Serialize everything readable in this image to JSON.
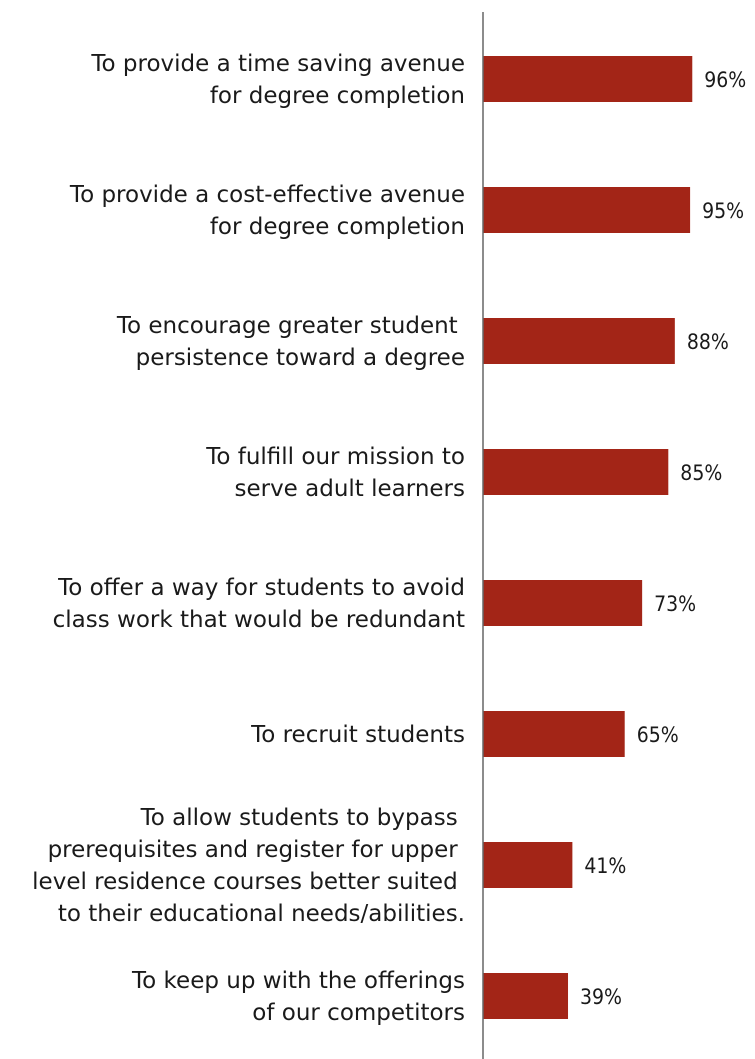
{
  "chart_data": {
    "type": "bar",
    "orientation": "horizontal",
    "categories": [
      [
        "To provide a time saving avenue",
        "for degree completion"
      ],
      [
        "To provide a cost-effective avenue",
        "for degree completion"
      ],
      [
        "To encourage greater student ",
        "persistence toward a degree"
      ],
      [
        "To fulfill our mission to",
        "serve adult learners"
      ],
      [
        "To offer a way for students to avoid",
        "class work that would be redundant"
      ],
      [
        "To recruit students"
      ],
      [
        "To allow students to bypass ",
        "prerequisites and register for upper ",
        "level residence courses better suited ",
        "to their educational needs/abilities."
      ],
      [
        "To keep up with the offerings",
        "of our competitors"
      ]
    ],
    "values": [
      96,
      95,
      88,
      85,
      73,
      65,
      41,
      39
    ],
    "value_labels": [
      "96%",
      "95%",
      "88%",
      "85%",
      "73%",
      "65%",
      "41%",
      "39%"
    ],
    "unit": "%",
    "xlim": [
      0,
      100
    ],
    "grid": false,
    "legend": "none",
    "colors": {
      "bar": "#A32517",
      "axis": "#666666",
      "text": "#1a1a1a"
    }
  }
}
